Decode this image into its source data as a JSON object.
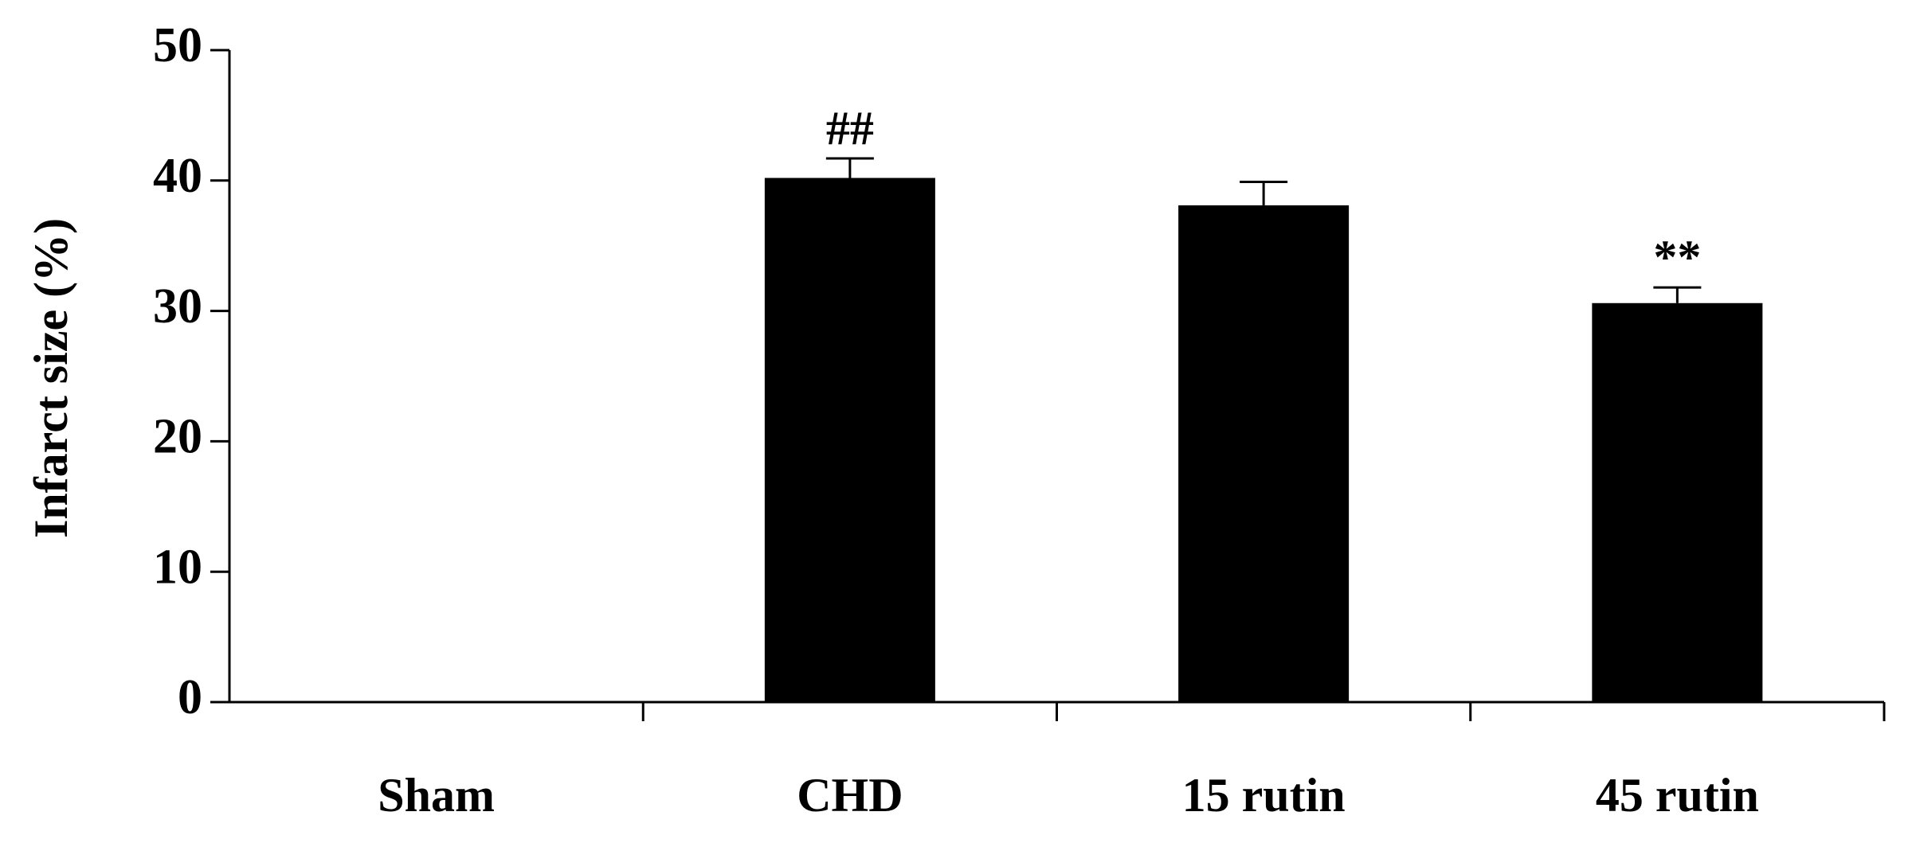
{
  "chart_data": {
    "type": "bar",
    "y_label": "Infarct size (%)",
    "categories": [
      "Sham",
      "CHD",
      "15 rutin",
      "45 rutin"
    ],
    "values": [
      0,
      40.2,
      38.1,
      30.6
    ],
    "errors": [
      null,
      1.5,
      1.8,
      1.2
    ],
    "annotations": [
      null,
      "##",
      null,
      "**"
    ],
    "color": "#000000",
    "ylim": [
      0,
      50
    ],
    "yticks": [
      0,
      10,
      20,
      30,
      40,
      50
    ],
    "grid": false
  }
}
